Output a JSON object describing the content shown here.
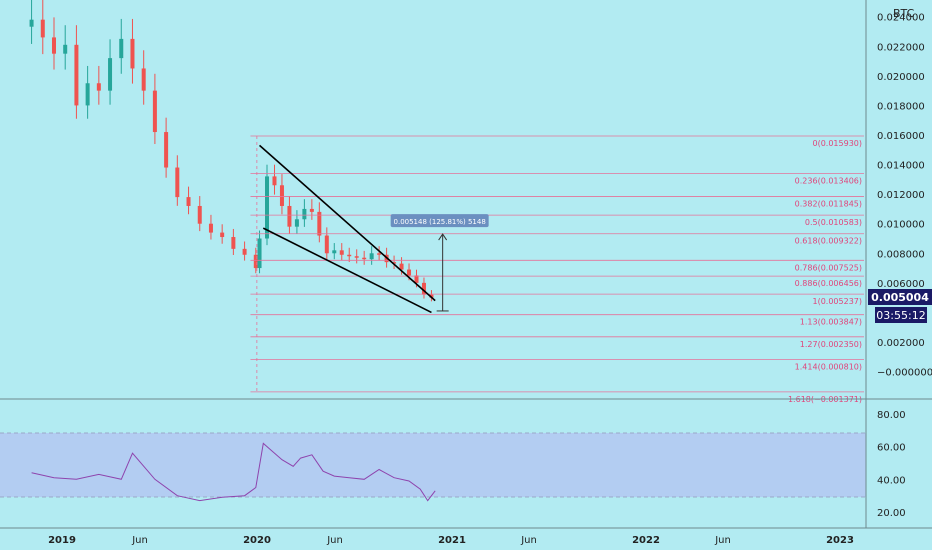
{
  "colors": {
    "background": "#b2ebf2",
    "up_candle": "#26a69a",
    "down_candle": "#ef5350",
    "fib_line": "#e57399",
    "fib_label": "#e0457b",
    "rsi_line": "#8e44ad",
    "rsi_band": "#b3cdf2",
    "price_tag": "#1a1a66",
    "axis_text": "#222222"
  },
  "currency_label": "BTC",
  "price_axis": {
    "ticks": [
      "0.024000",
      "0.022000",
      "0.020000",
      "0.018000",
      "0.016000",
      "0.014000",
      "0.012000",
      "0.010000",
      "0.008000",
      "0.006000",
      "0.002000",
      "−0.000000"
    ]
  },
  "rsi_axis": {
    "ticks": [
      "80.00",
      "60.00",
      "40.00",
      "20.00"
    ],
    "band": [
      30,
      70
    ]
  },
  "time_axis": {
    "ticks": [
      "2019",
      "Jun",
      "2020",
      "Jun",
      "2021",
      "Jun",
      "2022",
      "Jun",
      "2023"
    ]
  },
  "current_price": "0.005004",
  "countdown": "03:55:12",
  "measure_label": "0.005148 (125.81%) 5148",
  "fib_levels": [
    {
      "ratio": "0",
      "value": 0.01593,
      "label": "0(0.015930)"
    },
    {
      "ratio": "0.236",
      "value": 0.013406,
      "label": "0.236(0.013406)"
    },
    {
      "ratio": "0.382",
      "value": 0.011845,
      "label": "0.382(0.011845)"
    },
    {
      "ratio": "0.5",
      "value": 0.010583,
      "label": "0.5(0.010583)"
    },
    {
      "ratio": "0.618",
      "value": 0.009322,
      "label": "0.618(0.009322)"
    },
    {
      "ratio": "0.786",
      "value": 0.007525,
      "label": "0.786(0.007525)"
    },
    {
      "ratio": "0.886",
      "value": 0.006456,
      "label": "0.886(0.006456)"
    },
    {
      "ratio": "1",
      "value": 0.005237,
      "label": "1(0.005237)"
    },
    {
      "ratio": "1.13",
      "value": 0.003847,
      "label": "1.13(0.003847)"
    },
    {
      "ratio": "1.27",
      "value": 0.00235,
      "label": "1.27(0.002350)"
    },
    {
      "ratio": "1.414",
      "value": 0.00081,
      "label": "1.414(0.000810)"
    },
    {
      "ratio": "1.618",
      "value": -0.001371,
      "label": "1.618(−0.001371)"
    }
  ],
  "chart_data": {
    "type": "line",
    "symbol_currency": "BTC",
    "x_range": [
      "2018-11",
      "2023-02"
    ],
    "y_range": [
      -0.0015,
      0.0245
    ],
    "price_series": {
      "x": [
        "2018-11-05",
        "2018-11-26",
        "2018-12-17",
        "2019-01-07",
        "2019-01-28",
        "2019-02-18",
        "2019-03-11",
        "2019-04-01",
        "2019-04-22",
        "2019-05-13",
        "2019-06-03",
        "2019-06-24",
        "2019-07-15",
        "2019-08-05",
        "2019-08-26",
        "2019-09-16",
        "2019-10-07",
        "2019-10-28",
        "2019-11-18",
        "2019-12-09",
        "2019-12-30",
        "2020-01-06",
        "2020-01-20",
        "2020-02-03",
        "2020-02-17",
        "2020-03-02",
        "2020-03-16",
        "2020-03-30",
        "2020-04-13",
        "2020-04-27",
        "2020-05-11",
        "2020-05-25",
        "2020-06-08",
        "2020-06-22",
        "2020-07-06",
        "2020-07-20",
        "2020-08-03",
        "2020-08-17",
        "2020-08-31",
        "2020-09-14",
        "2020-09-28",
        "2020-10-12",
        "2020-10-26",
        "2020-11-09",
        "2020-11-23"
      ],
      "close": [
        0.0238,
        0.0226,
        0.0215,
        0.0221,
        0.018,
        0.0195,
        0.019,
        0.0212,
        0.0225,
        0.0205,
        0.019,
        0.0162,
        0.0138,
        0.0118,
        0.0112,
        0.01,
        0.0094,
        0.0091,
        0.0083,
        0.0079,
        0.007,
        0.009,
        0.0132,
        0.0126,
        0.0112,
        0.0098,
        0.0103,
        0.011,
        0.0108,
        0.0092,
        0.008,
        0.0082,
        0.0079,
        0.0078,
        0.0077,
        0.0076,
        0.008,
        0.0079,
        0.0074,
        0.0073,
        0.0069,
        0.0065,
        0.006,
        0.0052,
        0.005
      ]
    },
    "rsi_series": {
      "x": [
        "2018-11-05",
        "2018-12-17",
        "2019-01-28",
        "2019-03-11",
        "2019-04-22",
        "2019-05-13",
        "2019-06-24",
        "2019-08-05",
        "2019-09-16",
        "2019-10-28",
        "2019-12-09",
        "2019-12-30",
        "2020-01-13",
        "2020-01-27",
        "2020-02-17",
        "2020-03-09",
        "2020-03-23",
        "2020-04-13",
        "2020-05-04",
        "2020-05-25",
        "2020-06-22",
        "2020-07-20",
        "2020-08-17",
        "2020-09-14",
        "2020-10-12",
        "2020-11-02",
        "2020-11-16",
        "2020-11-30"
      ],
      "values": [
        44,
        41,
        40,
        43,
        40,
        56,
        40,
        30,
        27,
        29,
        30,
        35,
        62,
        58,
        52,
        48,
        53,
        55,
        45,
        42,
        41,
        40,
        46,
        41,
        39,
        34,
        27,
        33
      ]
    },
    "trendlines": [
      {
        "from": [
          "2020-01-06",
          0.0153
        ],
        "to": [
          "2020-11-30",
          0.0048
        ]
      },
      {
        "from": [
          "2020-01-13",
          0.0097
        ],
        "to": [
          "2020-11-23",
          0.004
        ]
      }
    ],
    "measure": {
      "x": "2020-12-14",
      "from": 0.0041,
      "to": 0.0093,
      "label": "0.005148 (125.81%) 5148"
    }
  }
}
